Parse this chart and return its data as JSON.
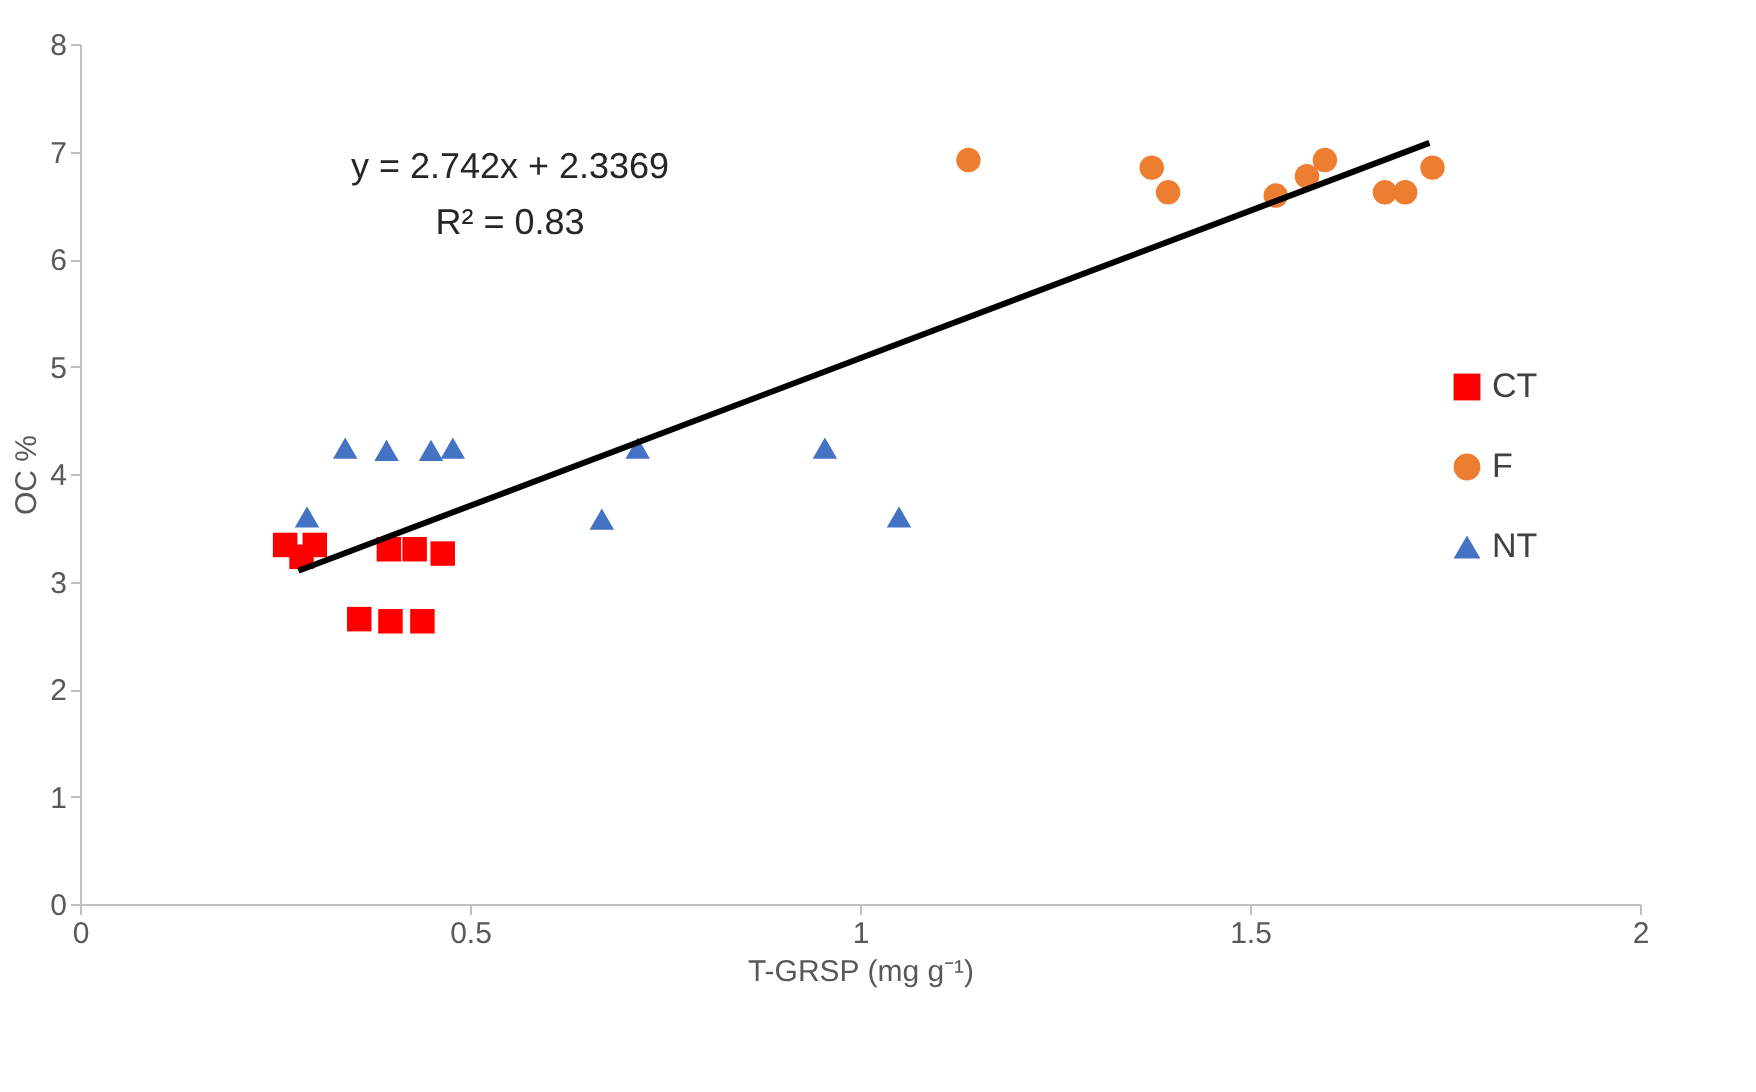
{
  "chart_data": {
    "type": "scatter",
    "xlabel": "T-GRSP  (mg g⁻¹)",
    "ylabel": "OC %",
    "xlim": [
      0,
      2
    ],
    "xticks": [
      0,
      0.5,
      1,
      1.5,
      2
    ],
    "ylim": [
      0,
      8
    ],
    "yticks": [
      0,
      1,
      2,
      3,
      4,
      5,
      6,
      7,
      8
    ],
    "grid": false,
    "legend": "right",
    "annotations": [
      "y = 2.742x + 2.3369",
      "R² = 0.83"
    ],
    "series": [
      {
        "name": "CT",
        "color": "#ff0000",
        "marker": "square",
        "x": [
          0.263,
          0.301,
          0.284,
          0.396,
          0.429,
          0.465,
          0.358,
          0.398,
          0.439
        ],
        "values": [
          3.34,
          3.34,
          3.23,
          3.3,
          3.3,
          3.26,
          2.65,
          2.63,
          2.63
        ]
      },
      {
        "name": "F",
        "color": "#ed7d31",
        "marker": "circle",
        "x": [
          1.139,
          1.374,
          1.395,
          1.533,
          1.573,
          1.596,
          1.673,
          1.699,
          1.734
        ],
        "values": [
          6.92,
          6.85,
          6.62,
          6.59,
          6.77,
          6.92,
          6.62,
          6.62,
          6.85
        ]
      },
      {
        "name": "NT",
        "color": "#4472c4",
        "marker": "triangle",
        "x": [
          0.34,
          0.393,
          0.45,
          0.478,
          0.291,
          0.669,
          0.715,
          0.955,
          1.05
        ],
        "values": [
          4.24,
          4.22,
          4.22,
          4.24,
          3.6,
          3.58,
          4.24,
          4.24,
          3.6
        ]
      },
      {
        "type": "line",
        "color": "#000000",
        "line_style": "solid",
        "x": [
          0.28,
          1.73
        ],
        "values": [
          3.1,
          7.08
        ]
      }
    ]
  }
}
